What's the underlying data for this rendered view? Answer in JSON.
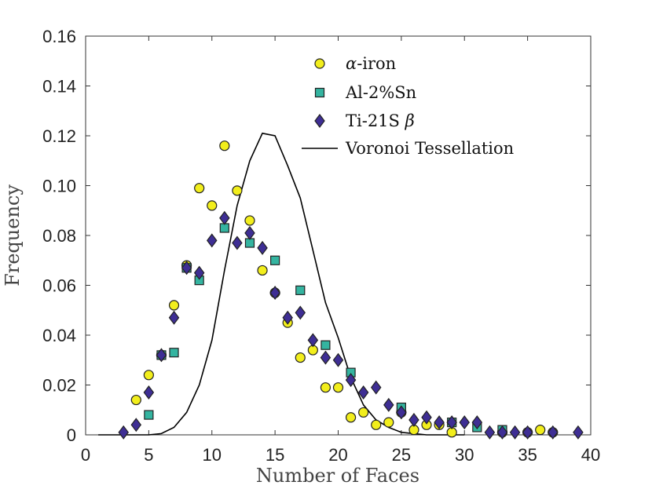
{
  "chart_data": {
    "type": "scatter",
    "title": "",
    "xlabel": "Number of Faces",
    "ylabel": "Frequency",
    "xlim": [
      0,
      40
    ],
    "ylim": [
      0,
      0.16
    ],
    "x_ticks": [
      0,
      5,
      10,
      15,
      20,
      25,
      30,
      35,
      40
    ],
    "x_tick_labels": [
      "0",
      "5",
      "10",
      "15",
      "20",
      "25",
      "30",
      "35",
      "40"
    ],
    "y_ticks": [
      0,
      0.02,
      0.04,
      0.06,
      0.08,
      0.1,
      0.12,
      0.14,
      0.16
    ],
    "y_tick_labels": [
      "0",
      "0.02",
      "0.04",
      "0.06",
      "0.08",
      "0.10",
      "0.12",
      "0.14",
      "0.16"
    ],
    "grid": false,
    "legend_position": "top-right",
    "series": [
      {
        "name": "α-iron",
        "legend_prefix": "α",
        "legend_suffix": "-iron",
        "marker": "circle",
        "color": "#f2ee1c",
        "points": [
          [
            4,
            0.014
          ],
          [
            5,
            0.024
          ],
          [
            6,
            0.032
          ],
          [
            7,
            0.052
          ],
          [
            8,
            0.068
          ],
          [
            9,
            0.099
          ],
          [
            10,
            0.092
          ],
          [
            11,
            0.116
          ],
          [
            12,
            0.098
          ],
          [
            13,
            0.086
          ],
          [
            14,
            0.066
          ],
          [
            15,
            0.057
          ],
          [
            16,
            0.045
          ],
          [
            17,
            0.031
          ],
          [
            18,
            0.034
          ],
          [
            19,
            0.019
          ],
          [
            20,
            0.019
          ],
          [
            21,
            0.007
          ],
          [
            22,
            0.009
          ],
          [
            23,
            0.004
          ],
          [
            24,
            0.005
          ],
          [
            25,
            0.009
          ],
          [
            26,
            0.002
          ],
          [
            27,
            0.004
          ],
          [
            28,
            0.004
          ],
          [
            29,
            0.001
          ],
          [
            33,
            0.001
          ],
          [
            35,
            0.001
          ],
          [
            36,
            0.002
          ],
          [
            37,
            0.001
          ]
        ]
      },
      {
        "name": "Al-2%Sn",
        "marker": "square",
        "color": "#34b4a0",
        "points": [
          [
            5,
            0.008
          ],
          [
            6,
            0.032
          ],
          [
            7,
            0.033
          ],
          [
            8,
            0.067
          ],
          [
            9,
            0.062
          ],
          [
            11,
            0.083
          ],
          [
            13,
            0.077
          ],
          [
            15,
            0.07
          ],
          [
            17,
            0.058
          ],
          [
            19,
            0.036
          ],
          [
            21,
            0.025
          ],
          [
            25,
            0.011
          ],
          [
            29,
            0.005
          ],
          [
            31,
            0.003
          ],
          [
            33,
            0.002
          ]
        ]
      },
      {
        "name": "Ti-21S β",
        "legend_prefix": "Ti-21S ",
        "legend_suffix": "β",
        "marker": "diamond",
        "color": "#3e2e94",
        "points": [
          [
            3,
            0.001
          ],
          [
            4,
            0.004
          ],
          [
            5,
            0.017
          ],
          [
            6,
            0.032
          ],
          [
            7,
            0.047
          ],
          [
            8,
            0.067
          ],
          [
            9,
            0.065
          ],
          [
            10,
            0.078
          ],
          [
            11,
            0.087
          ],
          [
            12,
            0.077
          ],
          [
            13,
            0.081
          ],
          [
            14,
            0.075
          ],
          [
            15,
            0.057
          ],
          [
            16,
            0.047
          ],
          [
            17,
            0.049
          ],
          [
            18,
            0.038
          ],
          [
            19,
            0.031
          ],
          [
            20,
            0.03
          ],
          [
            21,
            0.022
          ],
          [
            22,
            0.017
          ],
          [
            23,
            0.019
          ],
          [
            24,
            0.012
          ],
          [
            25,
            0.009
          ],
          [
            26,
            0.006
          ],
          [
            27,
            0.007
          ],
          [
            28,
            0.005
          ],
          [
            29,
            0.005
          ],
          [
            30,
            0.005
          ],
          [
            31,
            0.005
          ],
          [
            32,
            0.001
          ],
          [
            33,
            0.001
          ],
          [
            34,
            0.001
          ],
          [
            35,
            0.001
          ],
          [
            37,
            0.001
          ],
          [
            39,
            0.001
          ]
        ]
      },
      {
        "name": "Voronoi Tessellation",
        "marker": "line",
        "color": "#000000",
        "points": [
          [
            1,
            0
          ],
          [
            2,
            0
          ],
          [
            3,
            0
          ],
          [
            4,
            0
          ],
          [
            5,
            0
          ],
          [
            6,
            0.0005
          ],
          [
            7,
            0.003
          ],
          [
            8,
            0.009
          ],
          [
            9,
            0.02
          ],
          [
            10,
            0.038
          ],
          [
            11,
            0.066
          ],
          [
            12,
            0.092
          ],
          [
            13,
            0.11
          ],
          [
            14,
            0.121
          ],
          [
            15,
            0.12
          ],
          [
            16,
            0.108
          ],
          [
            17,
            0.095
          ],
          [
            18,
            0.074
          ],
          [
            19,
            0.053
          ],
          [
            20,
            0.039
          ],
          [
            21,
            0.023
          ],
          [
            22,
            0.012
          ],
          [
            23,
            0.006
          ],
          [
            24,
            0.003
          ],
          [
            25,
            0.001
          ],
          [
            26,
            0.0005
          ],
          [
            27,
            0
          ],
          [
            28,
            0
          ],
          [
            29,
            0
          ],
          [
            30,
            0
          ]
        ]
      }
    ]
  }
}
